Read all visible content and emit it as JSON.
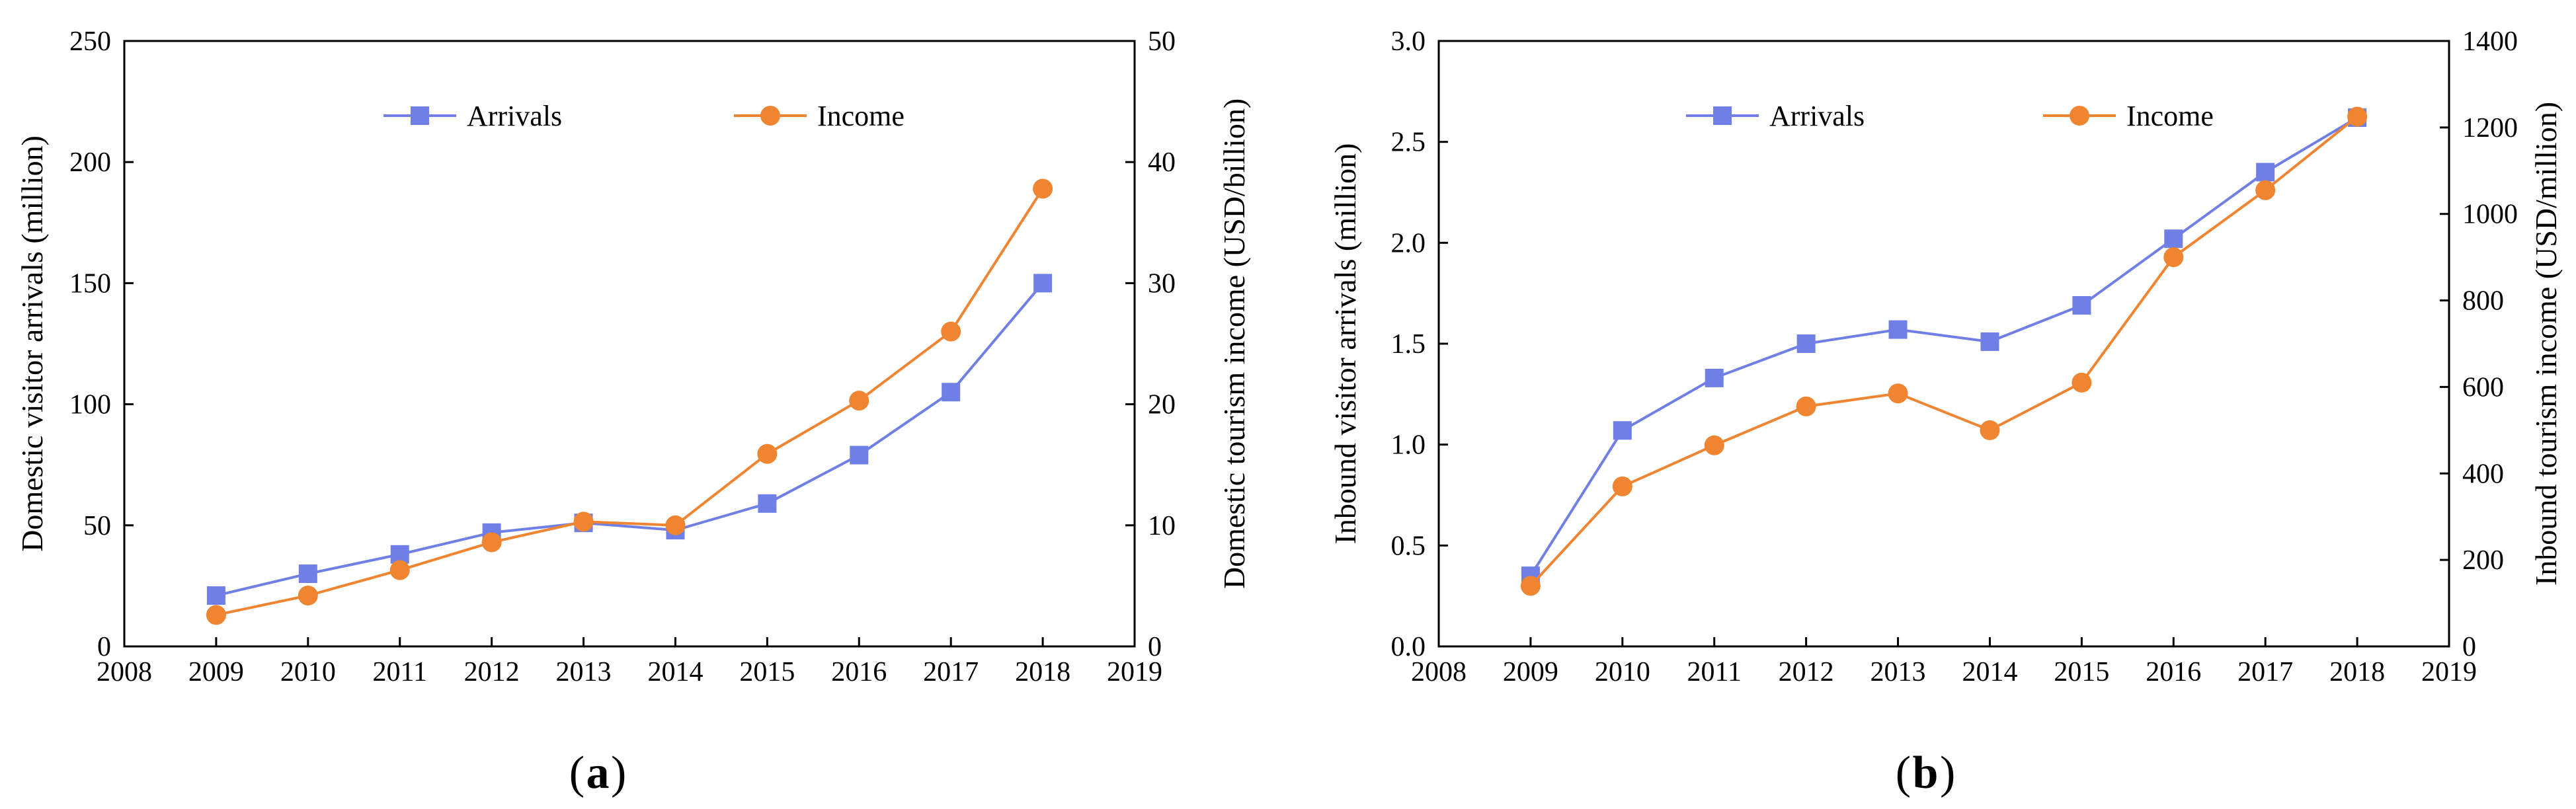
{
  "colors": {
    "arrivals": "#6F7FE6",
    "income": "#EF8431",
    "axis": "#000000"
  },
  "chart_data": [
    {
      "type": "line",
      "panel_label": "a",
      "x": [
        2009,
        2010,
        2011,
        2012,
        2013,
        2014,
        2015,
        2016,
        2017,
        2018
      ],
      "xlim": [
        2008,
        2019
      ],
      "x_ticks": [
        2008,
        2009,
        2010,
        2011,
        2012,
        2013,
        2014,
        2015,
        2016,
        2017,
        2018,
        2019
      ],
      "ylabel": "Domestic visitor arrivals (million)",
      "ylim": [
        0,
        250
      ],
      "y_ticks": [
        0,
        50,
        100,
        150,
        200,
        250
      ],
      "y2label": "Domestic tourism income (USD/billion)",
      "y2lim": [
        0,
        50
      ],
      "y2_ticks": [
        0,
        10,
        20,
        30,
        40,
        50
      ],
      "legend_position": "top",
      "grid": false,
      "series": [
        {
          "name": "Arrivals",
          "axis": "left",
          "marker": "square",
          "color": "#6F7FE6",
          "values": [
            21,
            30,
            38,
            47,
            51,
            48,
            59,
            79,
            105,
            150
          ]
        },
        {
          "name": "Income",
          "axis": "right",
          "marker": "circle",
          "color": "#EF8431",
          "values": [
            2.6,
            4.2,
            6.3,
            8.6,
            10.3,
            10.0,
            15.9,
            20.3,
            26.0,
            37.8
          ]
        }
      ]
    },
    {
      "type": "line",
      "panel_label": "b",
      "x": [
        2009,
        2010,
        2011,
        2012,
        2013,
        2014,
        2015,
        2016,
        2017,
        2018
      ],
      "xlim": [
        2008,
        2019
      ],
      "x_ticks": [
        2008,
        2009,
        2010,
        2011,
        2012,
        2013,
        2014,
        2015,
        2016,
        2017,
        2018,
        2019
      ],
      "ylabel": "Inbound visitor arrivals (million)",
      "ylim": [
        0,
        3.0
      ],
      "y_ticks": [
        "0.0",
        "0.5",
        "1.0",
        "1.5",
        "2.0",
        "2.5",
        "3.0"
      ],
      "y2label": "Inbound tourism income (USD/million)",
      "y2lim": [
        0,
        1400
      ],
      "y2_ticks": [
        0,
        200,
        400,
        600,
        800,
        1000,
        1200,
        1400
      ],
      "legend_position": "top",
      "grid": false,
      "series": [
        {
          "name": "Arrivals",
          "axis": "left",
          "marker": "square",
          "color": "#6F7FE6",
          "values": [
            0.35,
            1.07,
            1.33,
            1.5,
            1.57,
            1.51,
            1.69,
            2.02,
            2.35,
            2.62
          ]
        },
        {
          "name": "Income",
          "axis": "right",
          "marker": "circle",
          "color": "#EF8431",
          "values": [
            140,
            370,
            465,
            555,
            585,
            500,
            610,
            900,
            1055,
            1225
          ]
        }
      ]
    }
  ]
}
